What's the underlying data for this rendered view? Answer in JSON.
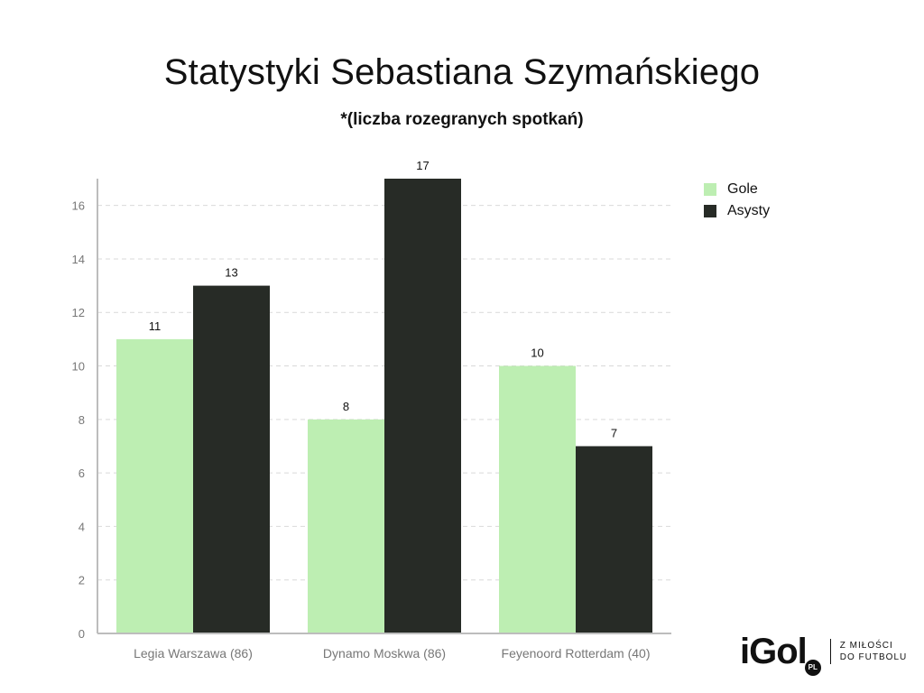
{
  "title": "Statystyki Sebastiana Szymańskiego",
  "subtitle": "*(liczba rozegranych spotkań)",
  "legend": [
    {
      "label": "Gole",
      "color": "#bdeeb2"
    },
    {
      "label": "Asysty",
      "color": "#272b26"
    }
  ],
  "brand": {
    "logo": "iGol",
    "logo_suffix": "PL",
    "tagline_line1": "Z MIŁOŚCI",
    "tagline_line2": "DO FUTBOLU"
  },
  "chart_data": {
    "type": "bar",
    "title": "Statystyki Sebastiana Szymańskiego",
    "subtitle": "*(liczba rozegranych spotkań)",
    "categories": [
      "Legia Warszawa (86)",
      "Dynamo Moskwa (86)",
      "Feyenoord Rotterdam (40)"
    ],
    "series": [
      {
        "name": "Gole",
        "values": [
          11,
          8,
          10
        ],
        "color": "#bdeeb2"
      },
      {
        "name": "Asysty",
        "values": [
          13,
          17,
          7
        ],
        "color": "#272b26"
      }
    ],
    "ylim": [
      0,
      17
    ],
    "yticks": [
      0,
      2,
      4,
      6,
      8,
      10,
      12,
      14,
      16
    ],
    "grid": true,
    "legend_position": "top-right",
    "xlabel": "",
    "ylabel": ""
  }
}
